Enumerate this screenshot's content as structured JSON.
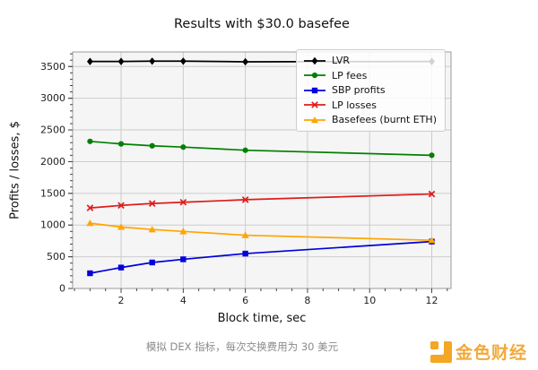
{
  "chart_data": {
    "type": "line",
    "title": "Results with $30.0 basefee",
    "xlabel": "Block time, sec",
    "ylabel": "Profits / losses, $",
    "x": [
      1,
      2,
      3,
      4,
      6,
      12
    ],
    "xticks": [
      2,
      4,
      6,
      8,
      10,
      12
    ],
    "yticks": [
      0,
      500,
      1000,
      1500,
      2000,
      2500,
      3000,
      3500
    ],
    "xlim": [
      0.44,
      12.62
    ],
    "ylim": [
      0,
      3730
    ],
    "grid": true,
    "legend_position": "upper right",
    "plot_bg": "#f5f5f5",
    "grid_color": "#cccccc",
    "series": [
      {
        "name": "LVR",
        "color": "#000000",
        "marker": "diamond",
        "values": [
          3580,
          3580,
          3585,
          3585,
          3575,
          3580
        ]
      },
      {
        "name": "LP fees",
        "color": "#008000",
        "marker": "circle",
        "values": [
          2320,
          2280,
          2250,
          2230,
          2180,
          2100
        ]
      },
      {
        "name": "SBP profits",
        "color": "#0000dd",
        "marker": "square",
        "values": [
          240,
          330,
          410,
          460,
          550,
          740
        ]
      },
      {
        "name": "LP losses",
        "color": "#e01b1b",
        "marker": "x",
        "values": [
          1270,
          1310,
          1340,
          1360,
          1400,
          1490
        ]
      },
      {
        "name": "Basefees (burnt ETH)",
        "color": "#ffa500",
        "marker": "triangle",
        "values": [
          1030,
          970,
          930,
          900,
          840,
          760
        ]
      }
    ]
  },
  "caption": "模拟 DEX 指标，每次交换费用为 30 美元",
  "watermark": {
    "text": "金色财经",
    "accent_color": "#f5a623"
  }
}
